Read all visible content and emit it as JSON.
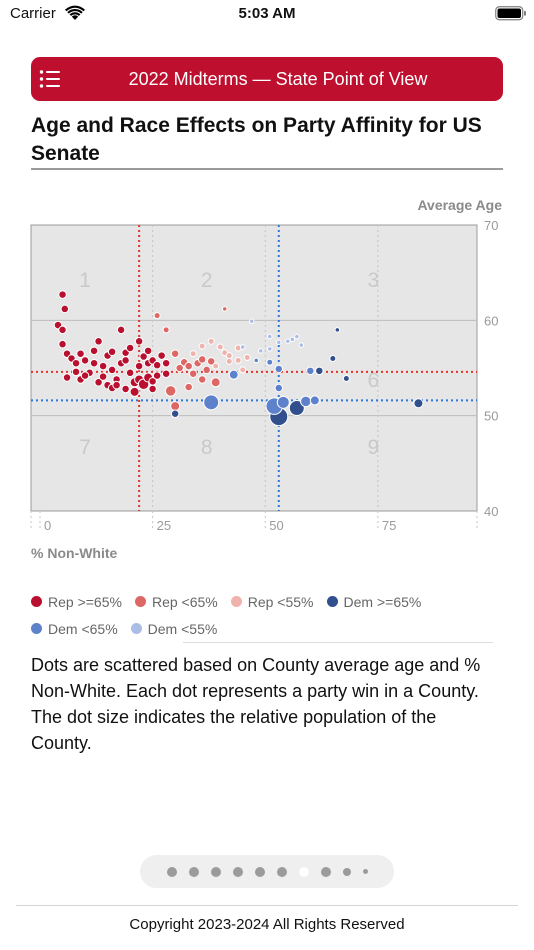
{
  "status": {
    "carrier": "Carrier",
    "time": "5:03 AM"
  },
  "header": {
    "title": "2022 Midterms — State Point of View",
    "menu_icon": "list-icon"
  },
  "page": {
    "title": "Age and Race Effects on Party Affinity for US Senate"
  },
  "chart_data": {
    "type": "scatter",
    "xlabel": "% Non-White",
    "ylabel": "Average Age",
    "xlim": [
      -2,
      97
    ],
    "ylim": [
      40,
      70
    ],
    "x_ticks": [
      "0",
      "25",
      "50",
      "75"
    ],
    "y_ticks": [
      "40",
      "50",
      "60",
      "70"
    ],
    "grid": true,
    "legend_position": "bottom",
    "reference_lines": {
      "rep_x": 22,
      "dem_x": 53,
      "rep_y": 54.6,
      "dem_y": 51.6
    },
    "region_labels": [
      {
        "label": "1",
        "x": 10,
        "y": 63.5
      },
      {
        "label": "2",
        "x": 37,
        "y": 63.5
      },
      {
        "label": "3",
        "x": 74,
        "y": 63.5
      },
      {
        "label": "6",
        "x": 74,
        "y": 53
      },
      {
        "label": "7",
        "x": 10,
        "y": 46
      },
      {
        "label": "8",
        "x": 37,
        "y": 46
      },
      {
        "label": "9",
        "x": 74,
        "y": 46
      }
    ],
    "series": [
      {
        "name": "Rep >=65%",
        "color": "#b8102e",
        "points": [
          {
            "x": 5,
            "y": 62.7,
            "s": 5
          },
          {
            "x": 5.5,
            "y": 61.2,
            "s": 5
          },
          {
            "x": 4,
            "y": 59.5,
            "s": 5
          },
          {
            "x": 5,
            "y": 59,
            "s": 5
          },
          {
            "x": 5,
            "y": 57.5,
            "s": 5
          },
          {
            "x": 6,
            "y": 56.5,
            "s": 5
          },
          {
            "x": 7,
            "y": 56,
            "s": 5
          },
          {
            "x": 8,
            "y": 55.5,
            "s": 5
          },
          {
            "x": 9,
            "y": 56.5,
            "s": 5
          },
          {
            "x": 10,
            "y": 55.8,
            "s": 5
          },
          {
            "x": 12,
            "y": 56.8,
            "s": 5
          },
          {
            "x": 13,
            "y": 57.8,
            "s": 5
          },
          {
            "x": 11,
            "y": 54.5,
            "s": 5
          },
          {
            "x": 9,
            "y": 53.8,
            "s": 5
          },
          {
            "x": 14,
            "y": 55.2,
            "s": 5
          },
          {
            "x": 15,
            "y": 56.3,
            "s": 5
          },
          {
            "x": 16,
            "y": 54.8,
            "s": 5
          },
          {
            "x": 18,
            "y": 55.5,
            "s": 5
          },
          {
            "x": 19,
            "y": 56.6,
            "s": 5
          },
          {
            "x": 20,
            "y": 54.5,
            "s": 5
          },
          {
            "x": 17,
            "y": 53.8,
            "s": 5
          },
          {
            "x": 13,
            "y": 53.5,
            "s": 5
          },
          {
            "x": 15,
            "y": 53.2,
            "s": 5
          },
          {
            "x": 16,
            "y": 52.9,
            "s": 5
          },
          {
            "x": 21,
            "y": 53.5,
            "s": 6
          },
          {
            "x": 22,
            "y": 53.8,
            "s": 6
          },
          {
            "x": 23,
            "y": 53.3,
            "s": 7
          },
          {
            "x": 24,
            "y": 54,
            "s": 6
          },
          {
            "x": 25,
            "y": 53.6,
            "s": 5
          },
          {
            "x": 19,
            "y": 52.8,
            "s": 5
          },
          {
            "x": 21,
            "y": 52.5,
            "s": 6
          },
          {
            "x": 25,
            "y": 52.8,
            "s": 5
          },
          {
            "x": 22,
            "y": 55.2,
            "s": 5
          },
          {
            "x": 23,
            "y": 56.2,
            "s": 5
          },
          {
            "x": 24,
            "y": 55.5,
            "s": 5
          },
          {
            "x": 25,
            "y": 55.8,
            "s": 5
          },
          {
            "x": 26,
            "y": 55.3,
            "s": 5
          },
          {
            "x": 27,
            "y": 56.3,
            "s": 5
          },
          {
            "x": 28,
            "y": 55.5,
            "s": 5
          },
          {
            "x": 22,
            "y": 57.8,
            "s": 5
          },
          {
            "x": 24,
            "y": 56.8,
            "s": 5
          },
          {
            "x": 8,
            "y": 54.6,
            "s": 5
          },
          {
            "x": 10,
            "y": 54.2,
            "s": 5
          },
          {
            "x": 6,
            "y": 54,
            "s": 5
          },
          {
            "x": 18,
            "y": 59,
            "s": 5
          },
          {
            "x": 12,
            "y": 55.5,
            "s": 5
          },
          {
            "x": 14,
            "y": 54.1,
            "s": 5
          },
          {
            "x": 16,
            "y": 56.7,
            "s": 5
          },
          {
            "x": 20,
            "y": 57.1,
            "s": 5
          },
          {
            "x": 17,
            "y": 53.2,
            "s": 5
          },
          {
            "x": 26,
            "y": 54.2,
            "s": 5
          },
          {
            "x": 28,
            "y": 54.4,
            "s": 5
          },
          {
            "x": 19,
            "y": 55.8,
            "s": 5
          }
        ]
      },
      {
        "name": "Rep <65%",
        "color": "#dd6764",
        "points": [
          {
            "x": 29,
            "y": 52.6,
            "s": 7
          },
          {
            "x": 30,
            "y": 51,
            "s": 6
          },
          {
            "x": 30,
            "y": 56.5,
            "s": 5
          },
          {
            "x": 32,
            "y": 55.6,
            "s": 5
          },
          {
            "x": 33,
            "y": 55.2,
            "s": 5
          },
          {
            "x": 35,
            "y": 55.5,
            "s": 5
          },
          {
            "x": 36,
            "y": 55.9,
            "s": 5
          },
          {
            "x": 38,
            "y": 55.7,
            "s": 5
          },
          {
            "x": 37,
            "y": 54.8,
            "s": 5
          },
          {
            "x": 34,
            "y": 54.4,
            "s": 5
          },
          {
            "x": 36,
            "y": 53.8,
            "s": 5
          },
          {
            "x": 26,
            "y": 60.5,
            "s": 4
          },
          {
            "x": 41,
            "y": 61.2,
            "s": 3
          },
          {
            "x": 39,
            "y": 53.5,
            "s": 6
          },
          {
            "x": 31,
            "y": 55,
            "s": 5
          },
          {
            "x": 33,
            "y": 53,
            "s": 5
          },
          {
            "x": 28,
            "y": 59,
            "s": 4
          }
        ]
      },
      {
        "name": "Rep <55%",
        "color": "#f0b2ad",
        "points": [
          {
            "x": 36,
            "y": 57.3,
            "s": 4
          },
          {
            "x": 38,
            "y": 57.8,
            "s": 4
          },
          {
            "x": 40,
            "y": 57.2,
            "s": 4
          },
          {
            "x": 41,
            "y": 56.6,
            "s": 4
          },
          {
            "x": 42,
            "y": 56.3,
            "s": 4
          },
          {
            "x": 44,
            "y": 57.1,
            "s": 4
          },
          {
            "x": 42,
            "y": 55.7,
            "s": 4
          },
          {
            "x": 44,
            "y": 55.8,
            "s": 4
          },
          {
            "x": 46,
            "y": 56.1,
            "s": 4
          },
          {
            "x": 45,
            "y": 54.8,
            "s": 4
          },
          {
            "x": 39,
            "y": 55.2,
            "s": 4
          },
          {
            "x": 34,
            "y": 56.5,
            "s": 4
          }
        ]
      },
      {
        "name": "Dem >=65%",
        "color": "#314f8d",
        "points": [
          {
            "x": 53,
            "y": 49.9,
            "s": 12
          },
          {
            "x": 57,
            "y": 50.8,
            "s": 10
          },
          {
            "x": 30,
            "y": 50.2,
            "s": 5
          },
          {
            "x": 84,
            "y": 51.3,
            "s": 6
          },
          {
            "x": 62,
            "y": 54.7,
            "s": 5
          },
          {
            "x": 65,
            "y": 56,
            "s": 4
          },
          {
            "x": 68,
            "y": 53.9,
            "s": 4
          },
          {
            "x": 66,
            "y": 59,
            "s": 3
          }
        ]
      },
      {
        "name": "Dem <65%",
        "color": "#5d82cb",
        "points": [
          {
            "x": 38,
            "y": 51.4,
            "s": 10
          },
          {
            "x": 52,
            "y": 51,
            "s": 11
          },
          {
            "x": 54,
            "y": 51.4,
            "s": 8
          },
          {
            "x": 59,
            "y": 51.5,
            "s": 7
          },
          {
            "x": 61,
            "y": 51.6,
            "s": 6
          },
          {
            "x": 53,
            "y": 52.9,
            "s": 5
          },
          {
            "x": 53,
            "y": 54.9,
            "s": 5
          },
          {
            "x": 43,
            "y": 54.3,
            "s": 6
          },
          {
            "x": 60,
            "y": 54.7,
            "s": 5
          },
          {
            "x": 51,
            "y": 55.6,
            "s": 4
          },
          {
            "x": 48,
            "y": 55.8,
            "s": 3
          }
        ]
      },
      {
        "name": "Dem <55%",
        "color": "#aabde6",
        "points": [
          {
            "x": 47,
            "y": 59.9,
            "s": 3
          },
          {
            "x": 49,
            "y": 56.8,
            "s": 3
          },
          {
            "x": 51,
            "y": 58.3,
            "s": 3
          },
          {
            "x": 53,
            "y": 57.7,
            "s": 3
          },
          {
            "x": 55,
            "y": 57.8,
            "s": 3
          },
          {
            "x": 56,
            "y": 58,
            "s": 3
          },
          {
            "x": 57,
            "y": 58.3,
            "s": 3
          },
          {
            "x": 51,
            "y": 57,
            "s": 3
          },
          {
            "x": 58,
            "y": 57.4,
            "s": 3
          },
          {
            "x": 45,
            "y": 57.2,
            "s": 3
          }
        ]
      }
    ]
  },
  "description": "Dots are scattered based on County average age and % Non-White. Each dot represents a party win in a County. The dot size indicates the relative population of the County.",
  "pager": {
    "count": 10,
    "active": 6
  },
  "footer": {
    "copyright": "Copyright 2023-2024 All Rights Reserved"
  }
}
